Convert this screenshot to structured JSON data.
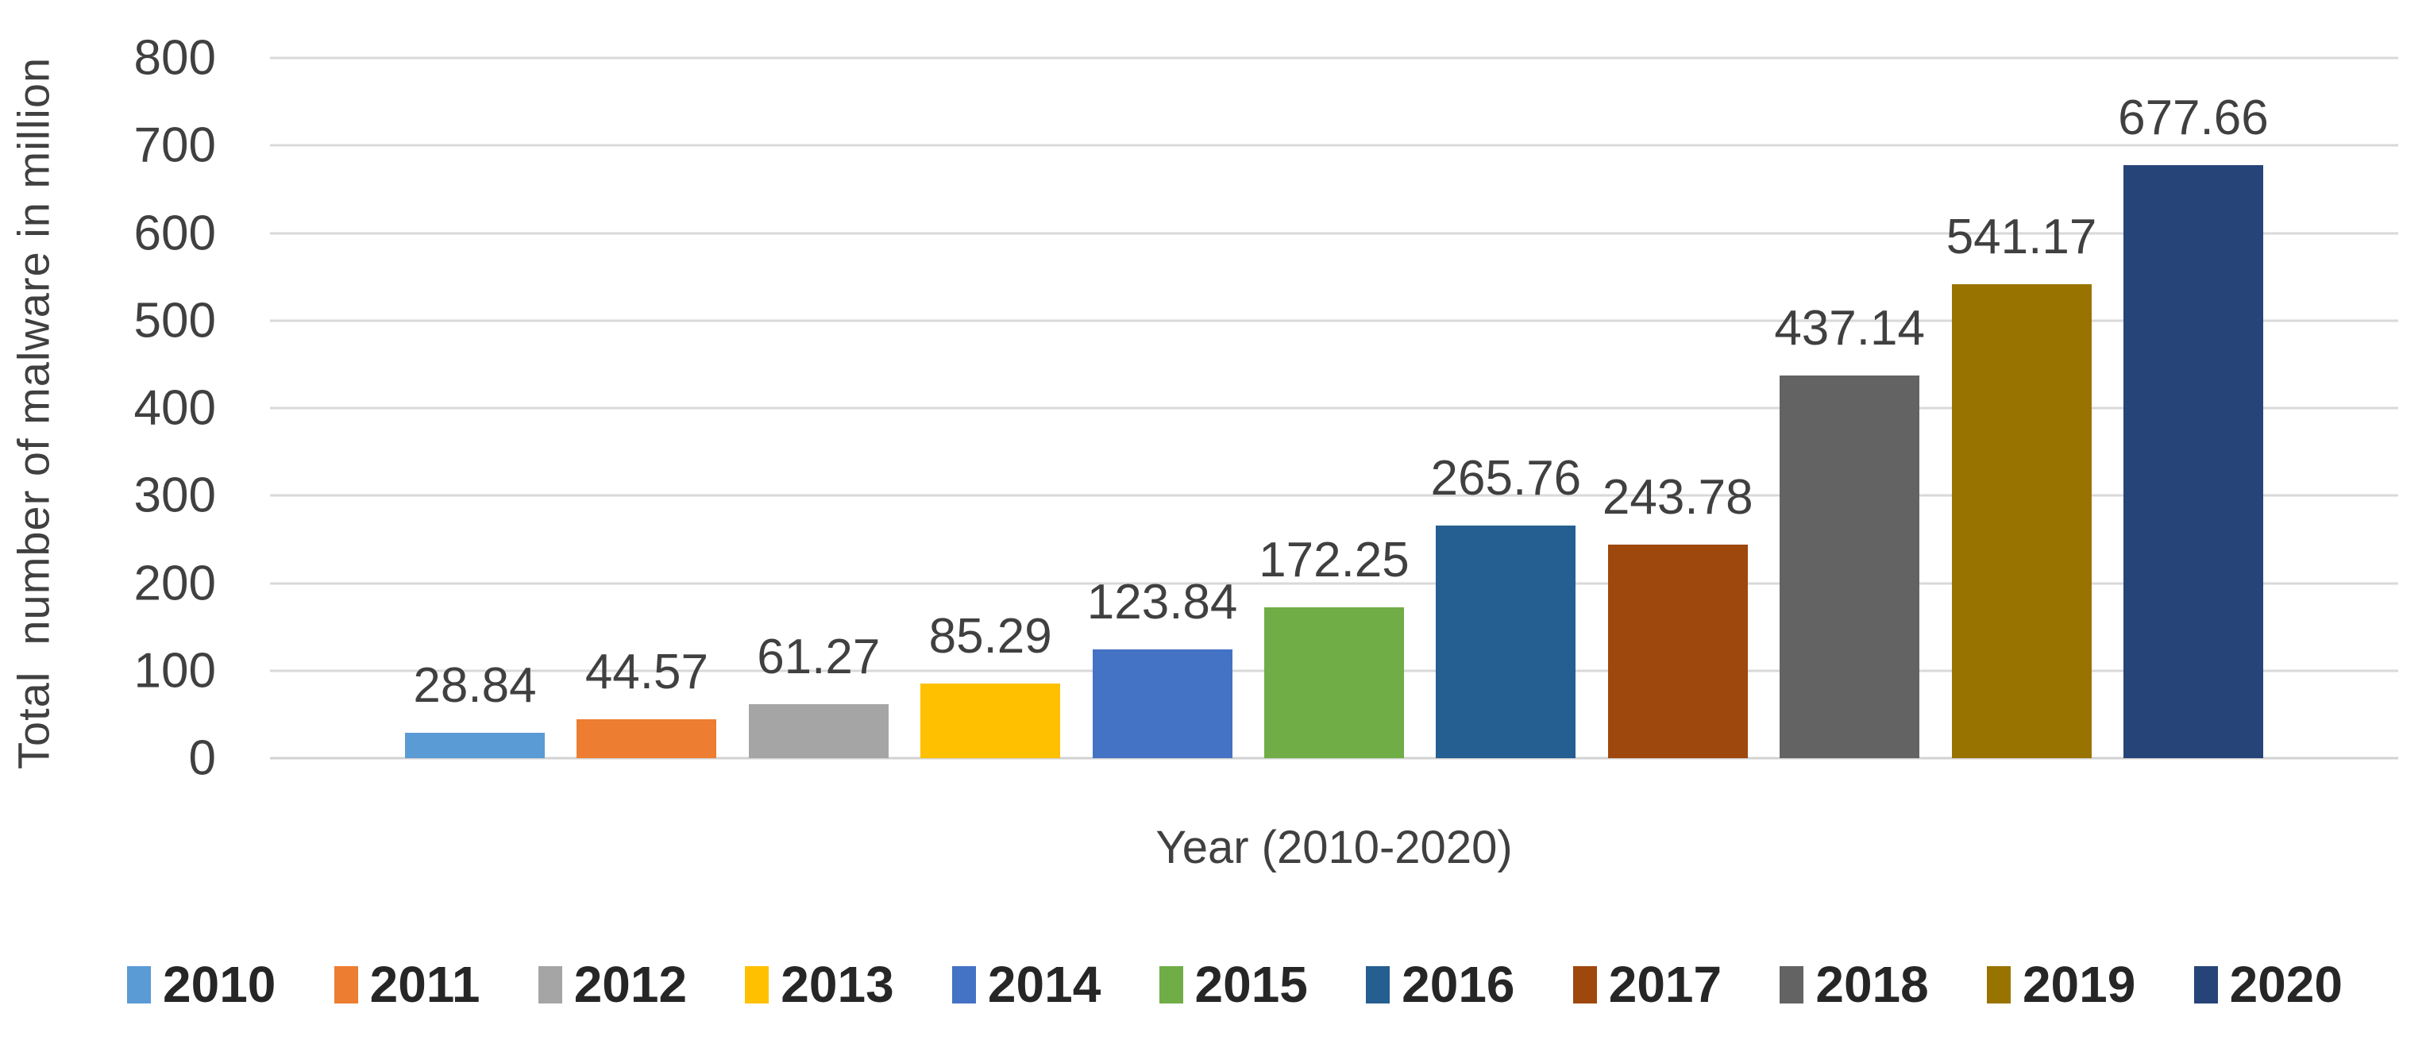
{
  "chart_data": {
    "type": "bar",
    "title": "",
    "categories": [
      "2010",
      "2011",
      "2012",
      "2013",
      "2014",
      "2015",
      "2016",
      "2017",
      "2018",
      "2019",
      "2020"
    ],
    "values": [
      28.84,
      44.57,
      61.27,
      85.29,
      123.84,
      172.25,
      265.76,
      243.78,
      437.14,
      541.17,
      677.66
    ],
    "colors": [
      "#5B9BD5",
      "#ED7D31",
      "#A5A5A5",
      "#FFC000",
      "#4472C4",
      "#70AD47",
      "#255E91",
      "#9E480E",
      "#636363",
      "#997300",
      "#264478"
    ],
    "xlabel": "Year (2010-2020)",
    "ylabel": "Total  number of malware in million",
    "ylim": [
      0,
      800
    ],
    "ytick_step": 100,
    "yticks": [
      0,
      100,
      200,
      300,
      400,
      500,
      600,
      700,
      800
    ],
    "grid": true,
    "gridline_color": "#D9D9D9",
    "label_color": "#404040",
    "legend_position": "bottom",
    "data_labels": true,
    "data_label_decimals": 2
  }
}
